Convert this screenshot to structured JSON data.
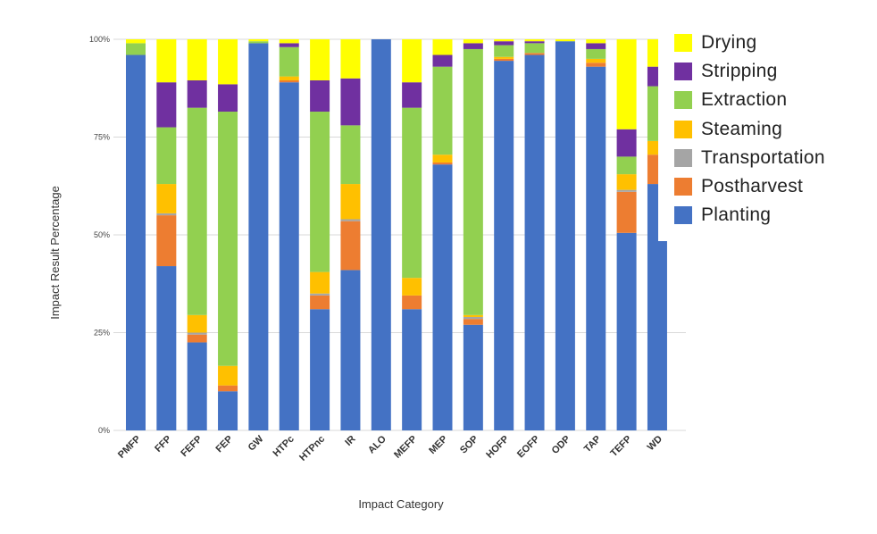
{
  "chart_data": {
    "type": "bar",
    "stacked": true,
    "normalized": true,
    "title": "",
    "xlabel": "Impact Category",
    "ylabel": "Impact Result Percentage",
    "ylim": [
      0,
      100
    ],
    "yticks": [
      "0%",
      "25%",
      "50%",
      "75%",
      "100%"
    ],
    "grid": true,
    "legend_position": "right",
    "categories": [
      "PMFP",
      "FFP",
      "FEFP",
      "FEP",
      "GW",
      "HTPc",
      "HTPnc",
      "IR",
      "ALO",
      "MEFP",
      "MEP",
      "SOP",
      "HOFP",
      "EOFP",
      "ODP",
      "TAP",
      "TEFP",
      "WD"
    ],
    "series": [
      {
        "name": "Planting",
        "color": "#4472C4",
        "values": [
          96.0,
          42.0,
          22.5,
          10.0,
          99.0,
          89.0,
          31.0,
          41.0,
          100.0,
          31.0,
          68.0,
          27.0,
          94.5,
          96.0,
          99.5,
          93.0,
          50.5,
          63.0
        ]
      },
      {
        "name": "Postharvest",
        "color": "#ED7D31",
        "values": [
          0.0,
          13.0,
          2.0,
          1.5,
          0.0,
          0.5,
          3.5,
          12.5,
          0.0,
          3.5,
          0.5,
          1.5,
          0.5,
          0.5,
          0.0,
          1.0,
          10.5,
          7.5
        ]
      },
      {
        "name": "Transportation",
        "color": "#A5A5A5",
        "values": [
          0.0,
          0.5,
          0.5,
          0.0,
          0.0,
          0.0,
          0.5,
          0.5,
          0.0,
          0.0,
          0.0,
          0.5,
          0.0,
          0.0,
          0.0,
          0.0,
          0.5,
          0.0
        ]
      },
      {
        "name": "Steaming",
        "color": "#FFC000",
        "values": [
          0.0,
          7.5,
          4.5,
          5.0,
          0.0,
          1.0,
          5.5,
          9.0,
          0.0,
          4.5,
          2.0,
          0.5,
          0.5,
          0.0,
          0.0,
          1.0,
          4.0,
          3.5
        ]
      },
      {
        "name": "Extraction",
        "color": "#92D050",
        "values": [
          3.0,
          14.5,
          53.0,
          65.0,
          0.5,
          7.5,
          41.0,
          15.0,
          0.0,
          43.5,
          22.5,
          68.0,
          3.0,
          2.5,
          0.0,
          2.5,
          4.5,
          14.0
        ]
      },
      {
        "name": "Stripping",
        "color": "#7030A0",
        "values": [
          0.0,
          11.5,
          7.0,
          7.0,
          0.0,
          1.0,
          8.0,
          12.0,
          0.0,
          6.5,
          3.0,
          1.5,
          1.0,
          0.5,
          0.0,
          1.5,
          7.0,
          5.0
        ]
      },
      {
        "name": "Drying",
        "color": "#FFFF00",
        "values": [
          1.0,
          11.0,
          10.5,
          11.5,
          0.5,
          1.0,
          10.5,
          10.0,
          0.0,
          11.0,
          4.0,
          1.0,
          0.5,
          0.5,
          0.5,
          1.0,
          23.0,
          7.0
        ]
      }
    ],
    "legend": [
      "Drying",
      "Stripping",
      "Extraction",
      "Steaming",
      "Transportation",
      "Postharvest",
      "Planting"
    ]
  }
}
